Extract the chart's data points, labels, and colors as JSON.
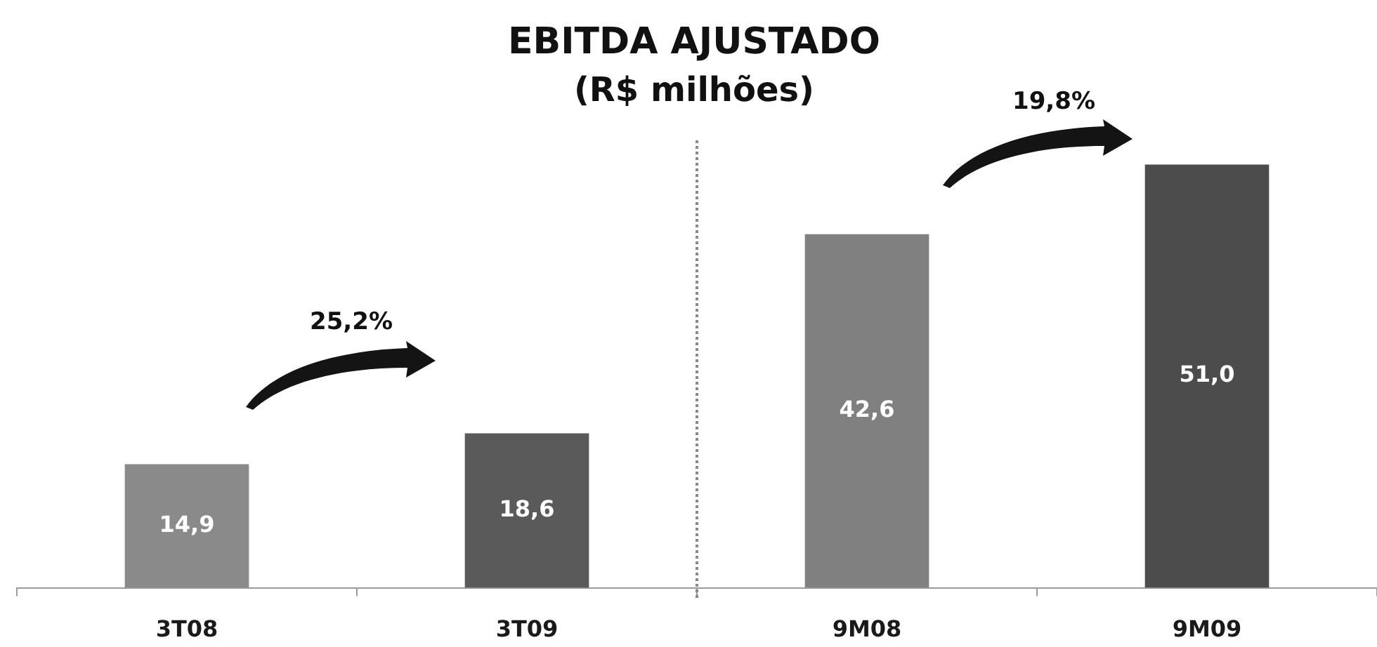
{
  "chart_data": {
    "type": "bar",
    "title": "EBITDA AJUSTADO",
    "subtitle": "(R$ milhões)",
    "categories": [
      "3T08",
      "3T09",
      "9M08",
      "9M09"
    ],
    "values": [
      14.9,
      18.6,
      42.6,
      51.0
    ],
    "colors": [
      "#8a8a8a",
      "#5a5a5a",
      "#808080",
      "#4c4c4c"
    ],
    "value_labels": [
      "14,9",
      "18,6",
      "42,6",
      "51,0"
    ],
    "annotations": [
      "25,2%",
      "19,8%"
    ],
    "legend": false
  }
}
